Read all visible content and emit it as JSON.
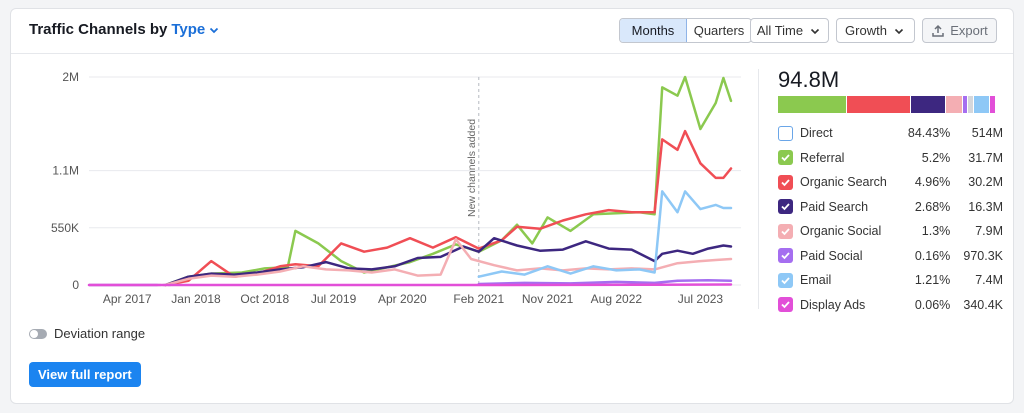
{
  "header": {
    "title": "Traffic Channels by",
    "type_label": "Type",
    "months": "Months",
    "quarters": "Quarters",
    "period": "All Time",
    "metric": "Growth",
    "export": "Export"
  },
  "legend": {
    "total": "94.8M",
    "items": [
      {
        "name": "Direct",
        "pct": "84.43%",
        "value": "514M",
        "color": "#5b9ee0",
        "checked": false
      },
      {
        "name": "Referral",
        "pct": "5.2%",
        "value": "31.7M",
        "color": "#8bc94f",
        "checked": true
      },
      {
        "name": "Organic Search",
        "pct": "4.96%",
        "value": "30.2M",
        "color": "#f04e55",
        "checked": true
      },
      {
        "name": "Paid Search",
        "pct": "2.68%",
        "value": "16.3M",
        "color": "#3d2780",
        "checked": true
      },
      {
        "name": "Organic Social",
        "pct": "1.3%",
        "value": "7.9M",
        "color": "#f4aeb3",
        "checked": true
      },
      {
        "name": "Paid Social",
        "pct": "0.16%",
        "value": "970.3K",
        "color": "#a56ef0",
        "checked": true
      },
      {
        "name": "Email",
        "pct": "1.21%",
        "value": "7.4M",
        "color": "#8ec8f6",
        "checked": true
      },
      {
        "name": "Display Ads",
        "pct": "0.06%",
        "value": "340.4K",
        "color": "#e24fd8",
        "checked": true
      }
    ],
    "stack": [
      {
        "color": "#8bc94f",
        "share": 0.326
      },
      {
        "color": "#f04e55",
        "share": 0.298
      },
      {
        "color": "#3d2780",
        "share": 0.161
      },
      {
        "color": "#f4aeb3",
        "share": 0.078
      },
      {
        "color": "#a56ef0",
        "share": 0.02
      },
      {
        "color": "#d5d7db",
        "share": 0.02
      },
      {
        "color": "#8ec8f6",
        "share": 0.073
      },
      {
        "color": "#e24fd8",
        "share": 0.024
      }
    ]
  },
  "footer": {
    "deviation": "Deviation range",
    "view_full": "View full report"
  },
  "chart_data": {
    "type": "line",
    "xlabel": "",
    "ylabel": "",
    "ylim": [
      0,
      2000000
    ],
    "y_ticks": [
      {
        "value": 0,
        "label": "0"
      },
      {
        "value": 550000,
        "label": "550K"
      },
      {
        "value": 1100000,
        "label": "1.1M"
      },
      {
        "value": 2000000,
        "label": "2M"
      }
    ],
    "x_range": [
      "2016-11",
      "2023-11"
    ],
    "x_ticks": [
      {
        "date": "2017-04",
        "label": "Apr 2017"
      },
      {
        "date": "2018-01",
        "label": "Jan 2018"
      },
      {
        "date": "2018-10",
        "label": "Oct 2018"
      },
      {
        "date": "2019-07",
        "label": "Jul 2019"
      },
      {
        "date": "2020-04",
        "label": "Apr 2020"
      },
      {
        "date": "2021-02",
        "label": "Feb 2021"
      },
      {
        "date": "2021-11",
        "label": "Nov 2021"
      },
      {
        "date": "2022-08",
        "label": "Aug 2022"
      },
      {
        "date": "2023-07",
        "label": "Jul 2023"
      }
    ],
    "annotation": {
      "date": "2021-02",
      "label": "New channels added"
    },
    "series": [
      {
        "name": "Referral",
        "color": "#8bc94f",
        "points": [
          [
            "2017-09",
            0
          ],
          [
            "2017-12",
            80000
          ],
          [
            "2018-03",
            110000
          ],
          [
            "2018-07",
            120000
          ],
          [
            "2018-10",
            160000
          ],
          [
            "2019-01",
            170000
          ],
          [
            "2019-02",
            520000
          ],
          [
            "2019-05",
            400000
          ],
          [
            "2019-08",
            230000
          ],
          [
            "2019-11",
            120000
          ],
          [
            "2020-02",
            170000
          ],
          [
            "2020-05",
            220000
          ],
          [
            "2020-08",
            300000
          ],
          [
            "2020-11",
            390000
          ],
          [
            "2021-02",
            320000
          ],
          [
            "2021-05",
            430000
          ],
          [
            "2021-07",
            580000
          ],
          [
            "2021-09",
            400000
          ],
          [
            "2021-11",
            650000
          ],
          [
            "2022-02",
            520000
          ],
          [
            "2022-05",
            680000
          ],
          [
            "2022-08",
            690000
          ],
          [
            "2022-11",
            700000
          ],
          [
            "2023-01",
            680000
          ],
          [
            "2023-02",
            1900000
          ],
          [
            "2023-04",
            1820000
          ],
          [
            "2023-05",
            2000000
          ],
          [
            "2023-07",
            1500000
          ],
          [
            "2023-09",
            1750000
          ],
          [
            "2023-10",
            1990000
          ],
          [
            "2023-11",
            1770000
          ]
        ]
      },
      {
        "name": "Organic Search",
        "color": "#f04e55",
        "points": [
          [
            "2017-09",
            0
          ],
          [
            "2017-12",
            40000
          ],
          [
            "2018-03",
            230000
          ],
          [
            "2018-06",
            80000
          ],
          [
            "2018-09",
            110000
          ],
          [
            "2018-12",
            180000
          ],
          [
            "2019-02",
            200000
          ],
          [
            "2019-05",
            180000
          ],
          [
            "2019-08",
            400000
          ],
          [
            "2019-11",
            320000
          ],
          [
            "2020-02",
            360000
          ],
          [
            "2020-05",
            450000
          ],
          [
            "2020-08",
            360000
          ],
          [
            "2020-11",
            460000
          ],
          [
            "2021-02",
            350000
          ],
          [
            "2021-05",
            430000
          ],
          [
            "2021-07",
            560000
          ],
          [
            "2021-10",
            540000
          ],
          [
            "2022-01",
            620000
          ],
          [
            "2022-04",
            680000
          ],
          [
            "2022-07",
            720000
          ],
          [
            "2022-10",
            700000
          ],
          [
            "2023-01",
            700000
          ],
          [
            "2023-02",
            1400000
          ],
          [
            "2023-04",
            1300000
          ],
          [
            "2023-05",
            1480000
          ],
          [
            "2023-07",
            1170000
          ],
          [
            "2023-09",
            1030000
          ],
          [
            "2023-10",
            1030000
          ],
          [
            "2023-11",
            1120000
          ]
        ]
      },
      {
        "name": "Paid Search",
        "color": "#3d2780",
        "points": [
          [
            "2017-09",
            0
          ],
          [
            "2017-12",
            80000
          ],
          [
            "2018-03",
            110000
          ],
          [
            "2018-06",
            100000
          ],
          [
            "2018-09",
            120000
          ],
          [
            "2018-12",
            150000
          ],
          [
            "2019-03",
            170000
          ],
          [
            "2019-06",
            220000
          ],
          [
            "2019-09",
            160000
          ],
          [
            "2019-12",
            150000
          ],
          [
            "2020-03",
            180000
          ],
          [
            "2020-06",
            260000
          ],
          [
            "2020-09",
            270000
          ],
          [
            "2020-12",
            370000
          ],
          [
            "2021-02",
            320000
          ],
          [
            "2021-04",
            450000
          ],
          [
            "2021-07",
            380000
          ],
          [
            "2021-10",
            330000
          ],
          [
            "2022-01",
            340000
          ],
          [
            "2022-04",
            420000
          ],
          [
            "2022-07",
            350000
          ],
          [
            "2022-10",
            340000
          ],
          [
            "2023-01",
            230000
          ],
          [
            "2023-02",
            300000
          ],
          [
            "2023-04",
            330000
          ],
          [
            "2023-06",
            300000
          ],
          [
            "2023-08",
            350000
          ],
          [
            "2023-10",
            380000
          ],
          [
            "2023-11",
            370000
          ]
        ]
      },
      {
        "name": "Organic Social",
        "color": "#f4aeb3",
        "points": [
          [
            "2017-09",
            0
          ],
          [
            "2017-12",
            60000
          ],
          [
            "2018-03",
            90000
          ],
          [
            "2018-06",
            80000
          ],
          [
            "2018-09",
            100000
          ],
          [
            "2018-12",
            130000
          ],
          [
            "2019-03",
            180000
          ],
          [
            "2019-06",
            150000
          ],
          [
            "2019-09",
            140000
          ],
          [
            "2019-12",
            120000
          ],
          [
            "2020-03",
            150000
          ],
          [
            "2020-06",
            90000
          ],
          [
            "2020-09",
            100000
          ],
          [
            "2020-11",
            440000
          ],
          [
            "2021-01",
            250000
          ],
          [
            "2021-04",
            190000
          ],
          [
            "2021-07",
            140000
          ],
          [
            "2021-10",
            160000
          ],
          [
            "2022-01",
            140000
          ],
          [
            "2022-04",
            160000
          ],
          [
            "2022-07",
            150000
          ],
          [
            "2022-10",
            160000
          ],
          [
            "2023-01",
            150000
          ],
          [
            "2023-04",
            210000
          ],
          [
            "2023-07",
            230000
          ],
          [
            "2023-09",
            240000
          ],
          [
            "2023-11",
            250000
          ]
        ]
      },
      {
        "name": "Email",
        "color": "#8ec8f6",
        "points": [
          [
            "2021-02",
            80000
          ],
          [
            "2021-05",
            130000
          ],
          [
            "2021-08",
            100000
          ],
          [
            "2021-11",
            180000
          ],
          [
            "2022-02",
            110000
          ],
          [
            "2022-05",
            180000
          ],
          [
            "2022-08",
            140000
          ],
          [
            "2022-11",
            150000
          ],
          [
            "2023-01",
            120000
          ],
          [
            "2023-02",
            900000
          ],
          [
            "2023-04",
            700000
          ],
          [
            "2023-05",
            900000
          ],
          [
            "2023-07",
            730000
          ],
          [
            "2023-09",
            770000
          ],
          [
            "2023-10",
            740000
          ],
          [
            "2023-11",
            740000
          ]
        ]
      },
      {
        "name": "Paid Social",
        "color": "#a56ef0",
        "points": [
          [
            "2021-02",
            10000
          ],
          [
            "2021-08",
            20000
          ],
          [
            "2022-02",
            15000
          ],
          [
            "2022-08",
            30000
          ],
          [
            "2023-01",
            20000
          ],
          [
            "2023-04",
            40000
          ],
          [
            "2023-08",
            45000
          ],
          [
            "2023-11",
            40000
          ]
        ]
      },
      {
        "name": "Display Ads",
        "color": "#e24fd8",
        "points": [
          [
            "2016-11",
            0
          ],
          [
            "2019-01",
            0
          ],
          [
            "2021-01",
            0
          ],
          [
            "2023-01",
            3000
          ],
          [
            "2023-11",
            5000
          ]
        ]
      }
    ]
  }
}
